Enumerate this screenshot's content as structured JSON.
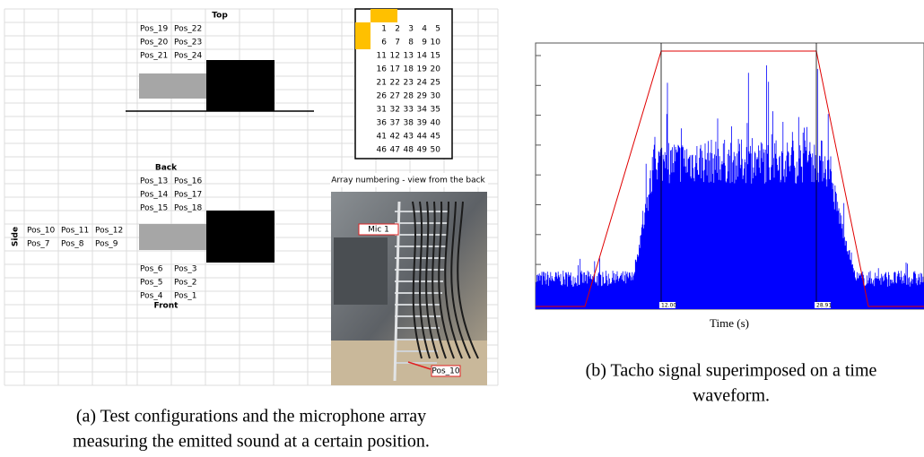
{
  "panel_a": {
    "sheet": {
      "top_label": "Top",
      "top_positions": [
        [
          "Pos_19",
          "Pos_22"
        ],
        [
          "Pos_20",
          "Pos_23"
        ],
        [
          "Pos_21",
          "Pos_24"
        ]
      ],
      "back_label": "Back",
      "back_positions": [
        [
          "Pos_13",
          "Pos_16"
        ],
        [
          "Pos_14",
          "Pos_17"
        ],
        [
          "Pos_15",
          "Pos_18"
        ]
      ],
      "side_label": "Side",
      "side_positions": [
        [
          "Pos_10",
          "Pos_11",
          "Pos_12"
        ],
        [
          "Pos_7",
          "Pos_8",
          "Pos_9"
        ]
      ],
      "front_positions": [
        [
          "Pos_6",
          "Pos_3"
        ],
        [
          "Pos_5",
          "Pos_2"
        ],
        [
          "Pos_4",
          "Pos_1"
        ]
      ],
      "front_label": "Front"
    },
    "array_grid": [
      [
        1,
        2,
        3,
        4,
        5
      ],
      [
        6,
        7,
        8,
        9,
        10
      ],
      [
        11,
        12,
        13,
        14,
        15
      ],
      [
        16,
        17,
        18,
        19,
        20
      ],
      [
        21,
        22,
        23,
        24,
        25
      ],
      [
        26,
        27,
        28,
        29,
        30
      ],
      [
        31,
        32,
        33,
        34,
        35
      ],
      [
        36,
        37,
        38,
        39,
        40
      ],
      [
        41,
        42,
        43,
        44,
        45
      ],
      [
        46,
        47,
        48,
        49,
        50
      ]
    ],
    "photo": {
      "caption": "Array numbering - view from the back",
      "mic_label": "Mic 1",
      "pos_label": "Pos_10"
    },
    "caption": [
      "(a) Test configurations and the microphone array",
      "measuring the emitted sound at a certain position."
    ]
  },
  "panel_b": {
    "markers": [
      "12.00",
      "28.91"
    ],
    "x_label": "Time (s)",
    "caption": [
      "(b) Tacho signal superimposed on a time",
      "waveform."
    ]
  }
}
